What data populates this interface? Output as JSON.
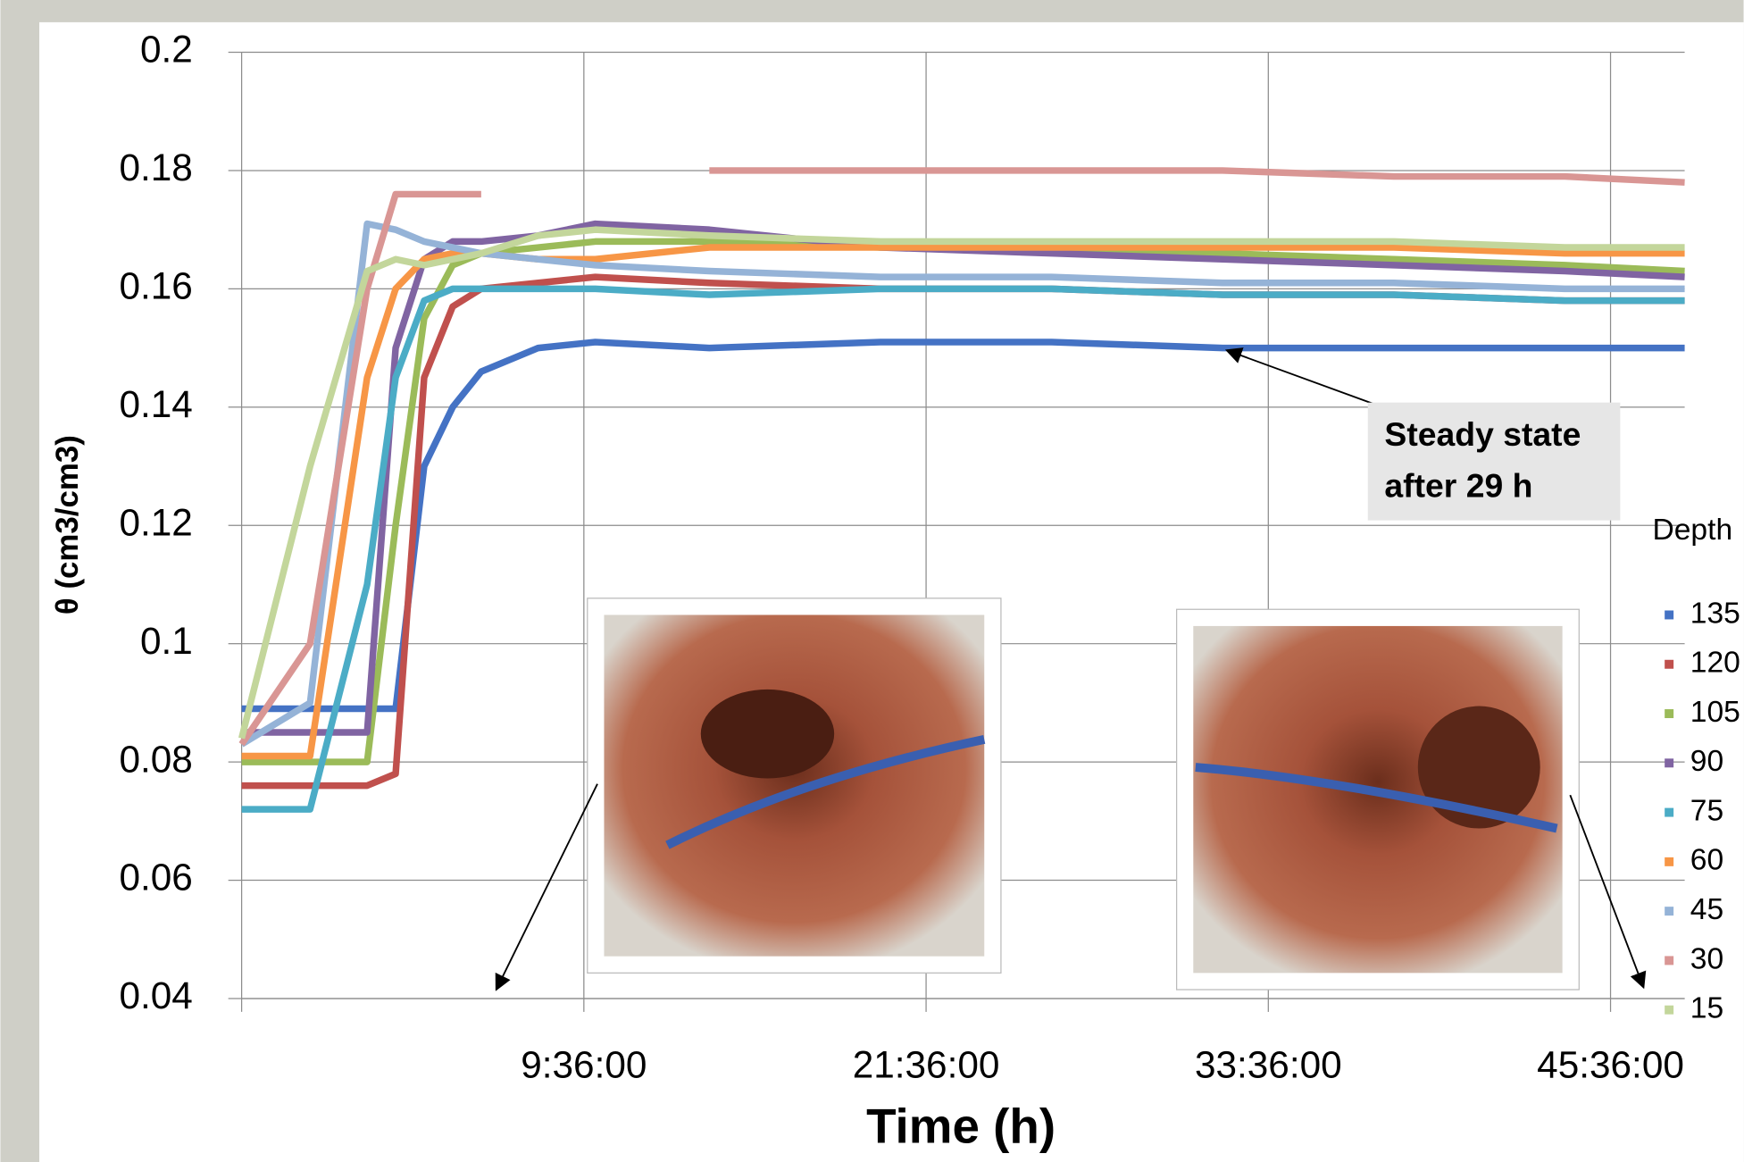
{
  "chart_data": {
    "type": "line",
    "x_label": "Time (h)",
    "y_label": "θ (cm3/cm3)",
    "legend_title": "Depth",
    "legend": "right",
    "grid": true,
    "xlim": [
      -2.4,
      48.2
    ],
    "xticks": [
      {
        "value": 9.6,
        "label": "9:36:00"
      },
      {
        "value": 21.6,
        "label": "21:36:00"
      },
      {
        "value": 33.6,
        "label": "33:36:00"
      },
      {
        "value": 45.6,
        "label": "45:36:00"
      }
    ],
    "ylim": [
      0.04,
      0.2
    ],
    "yticks": [
      0.04,
      0.06,
      0.08,
      0.1,
      0.12,
      0.14,
      0.16,
      0.18,
      0.2
    ],
    "annotation": [
      "Steady state",
      "after 29 h"
    ],
    "x": [
      -2.4,
      0,
      2,
      3,
      4,
      5,
      6,
      8,
      10,
      14,
      20,
      26,
      32,
      38,
      44,
      48.2
    ],
    "series": [
      {
        "name": "135",
        "color": "#4472c4",
        "values": [
          0.089,
          0.089,
          0.089,
          0.089,
          0.13,
          0.14,
          0.146,
          0.15,
          0.151,
          0.15,
          0.151,
          0.151,
          0.15,
          0.15,
          0.15,
          0.15
        ]
      },
      {
        "name": "120",
        "color": "#c0504d",
        "values": [
          0.076,
          0.076,
          0.076,
          0.078,
          0.145,
          0.157,
          0.16,
          0.161,
          0.162,
          0.161,
          0.16,
          0.16,
          0.159,
          0.159,
          0.158,
          0.158
        ]
      },
      {
        "name": "105",
        "color": "#9bbb59",
        "values": [
          0.08,
          0.08,
          0.08,
          0.12,
          0.155,
          0.164,
          0.166,
          0.167,
          0.168,
          0.168,
          0.167,
          0.167,
          0.166,
          0.165,
          0.164,
          0.163
        ]
      },
      {
        "name": "90",
        "color": "#8064a2",
        "values": [
          0.085,
          0.085,
          0.085,
          0.15,
          0.165,
          0.168,
          0.168,
          0.169,
          0.171,
          0.17,
          0.167,
          0.166,
          0.165,
          0.164,
          0.163,
          0.162
        ]
      },
      {
        "name": "75",
        "color": "#4bacc6",
        "values": [
          0.072,
          0.072,
          0.11,
          0.145,
          0.158,
          0.16,
          0.16,
          0.16,
          0.16,
          0.159,
          0.16,
          0.16,
          0.159,
          0.159,
          0.158,
          0.158
        ]
      },
      {
        "name": "60",
        "color": "#f79646",
        "values": [
          0.081,
          0.081,
          0.145,
          0.16,
          0.165,
          0.166,
          0.166,
          0.165,
          0.165,
          0.167,
          0.167,
          0.167,
          0.167,
          0.167,
          0.166,
          0.166
        ]
      },
      {
        "name": "45",
        "color": "#95b3d7",
        "values": [
          0.083,
          0.09,
          0.171,
          0.17,
          0.168,
          0.167,
          0.166,
          0.165,
          0.164,
          0.163,
          0.162,
          0.162,
          0.161,
          0.161,
          0.16,
          0.16
        ]
      },
      {
        "name": "30",
        "color": "#d99694",
        "values": [
          0.083,
          0.1,
          0.16,
          0.176,
          0.176,
          0.176,
          0.176,
          null,
          null,
          0.18,
          0.18,
          0.18,
          0.18,
          0.179,
          0.179,
          0.178
        ]
      },
      {
        "name": "15",
        "color": "#c3d69b",
        "values": [
          0.084,
          0.13,
          0.163,
          0.165,
          0.164,
          0.165,
          0.166,
          0.169,
          0.17,
          0.169,
          0.168,
          0.168,
          0.168,
          0.168,
          0.167,
          0.167
        ]
      }
    ]
  }
}
